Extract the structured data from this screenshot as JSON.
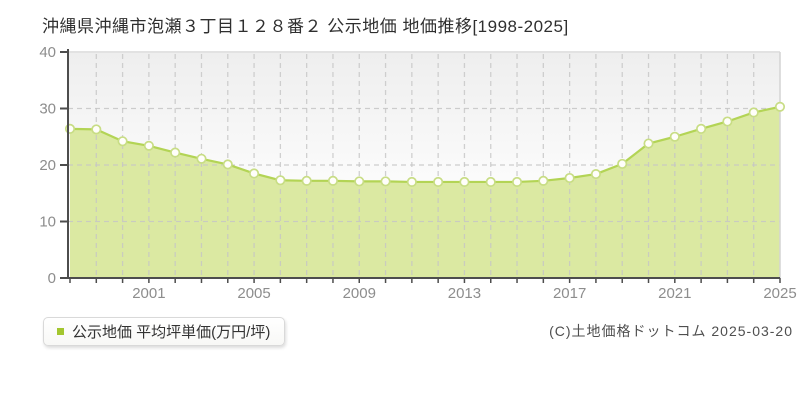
{
  "header": {
    "title": "沖縄県沖縄市泡瀬３丁目１２８番２ 公示地価 地価推移[1998-2025]"
  },
  "legend": {
    "marker_color": "#a3c62f",
    "label": "公示地価 平均坪単価(万円/坪)"
  },
  "footer": {
    "copyright": "(C)土地価格ドットコム 2025-03-20"
  },
  "chart_data": {
    "type": "area",
    "title": "沖縄県沖縄市泡瀬３丁目１２８番２ 公示地価 地価推移[1998-2025]",
    "x": [
      1998,
      1999,
      2000,
      2001,
      2002,
      2003,
      2004,
      2005,
      2006,
      2007,
      2008,
      2009,
      2010,
      2011,
      2012,
      2013,
      2014,
      2015,
      2016,
      2017,
      2018,
      2019,
      2020,
      2021,
      2022,
      2023,
      2024,
      2025
    ],
    "series": [
      {
        "name": "公示地価 平均坪単価(万円/坪)",
        "values": [
          26.4,
          26.3,
          24.2,
          23.4,
          22.2,
          21.1,
          20.1,
          18.5,
          17.3,
          17.2,
          17.2,
          17.1,
          17.1,
          17.0,
          17.0,
          17.0,
          17.0,
          17.0,
          17.2,
          17.7,
          18.4,
          20.2,
          23.8,
          25.0,
          26.4,
          27.7,
          29.3,
          30.3
        ]
      }
    ],
    "xlabel": "",
    "ylabel": "",
    "ylim": [
      0,
      40
    ],
    "yticks": [
      0,
      10,
      20,
      30,
      40
    ],
    "xtick_labels": [
      2001,
      2005,
      2009,
      2013,
      2017,
      2021,
      2025
    ],
    "grid": true,
    "legend_position": "bottom-left",
    "colors": {
      "area": "#dbe9a2",
      "line": "#b3d455",
      "marker_fill": "#fffefa",
      "marker_stroke": "#c8dd85",
      "grid": "#c6c6c6",
      "axis": "#4d4d4d",
      "tick_label": "#8d8d8d",
      "plot_bg_top": "#eeeeee",
      "plot_bg_bottom": "#ffffff",
      "frame_top": "#e2e2e2",
      "frame_right": "#d4d4d4"
    }
  }
}
